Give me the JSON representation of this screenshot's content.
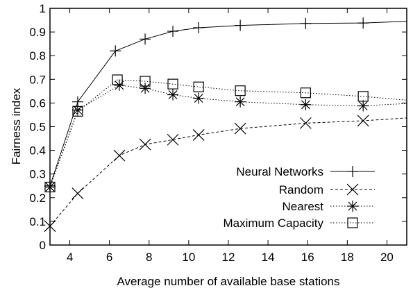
{
  "chart_data": {
    "type": "line",
    "xlabel": "Average number of available base stations",
    "ylabel": "Fairness index",
    "xlim": [
      3,
      21
    ],
    "ylim": [
      0,
      1
    ],
    "xticks": [
      4,
      6,
      8,
      10,
      12,
      14,
      16,
      18,
      20
    ],
    "yticks": [
      0,
      0.1,
      0.2,
      0.3,
      0.4,
      0.5,
      0.6,
      0.7,
      0.8,
      0.9,
      1
    ],
    "grid": false,
    "legend_position": "bottom-right",
    "series": [
      {
        "name": "Neural Networks",
        "marker": "plus",
        "line_style": "solid",
        "x": [
          3,
          4.4,
          6.3,
          7.8,
          9.2,
          10.5,
          12.6,
          15.9,
          18.8,
          21
        ],
        "y": [
          0.25,
          0.605,
          0.82,
          0.87,
          0.903,
          0.918,
          0.928,
          0.936,
          0.938,
          0.945
        ],
        "marker_x": [
          3,
          4.4,
          6.3,
          7.8,
          9.2,
          10.5,
          12.6,
          15.9,
          18.8
        ]
      },
      {
        "name": "Random",
        "marker": "cross",
        "line_style": "dashed",
        "x": [
          3,
          4.4,
          6.5,
          7.8,
          9.2,
          10.5,
          12.6,
          15.9,
          18.8,
          21
        ],
        "y": [
          0.08,
          0.218,
          0.378,
          0.425,
          0.445,
          0.465,
          0.492,
          0.515,
          0.525,
          0.537
        ],
        "marker_x": [
          3,
          4.4,
          6.5,
          7.8,
          9.2,
          10.5,
          12.6,
          15.9,
          18.8
        ]
      },
      {
        "name": "Nearest",
        "marker": "star",
        "line_style": "dotted",
        "x": [
          3,
          4.4,
          6.5,
          7.8,
          9.2,
          10.5,
          12.6,
          15.9,
          18.8,
          21
        ],
        "y": [
          0.245,
          0.57,
          0.675,
          0.662,
          0.635,
          0.62,
          0.605,
          0.593,
          0.588,
          0.598
        ],
        "marker_x": [
          3,
          4.4,
          6.5,
          7.8,
          9.2,
          10.5,
          12.6,
          15.9,
          18.8
        ]
      },
      {
        "name": "Maximum Capacity",
        "marker": "square",
        "line_style": "dotted",
        "x": [
          3,
          4.4,
          6.4,
          7.8,
          9.2,
          10.5,
          12.6,
          15.9,
          18.8,
          21
        ],
        "y": [
          0.245,
          0.565,
          0.698,
          0.692,
          0.68,
          0.668,
          0.652,
          0.643,
          0.628,
          0.612
        ],
        "marker_x": [
          3,
          4.4,
          6.4,
          7.8,
          9.2,
          10.5,
          12.6,
          15.9,
          18.8
        ]
      }
    ]
  }
}
